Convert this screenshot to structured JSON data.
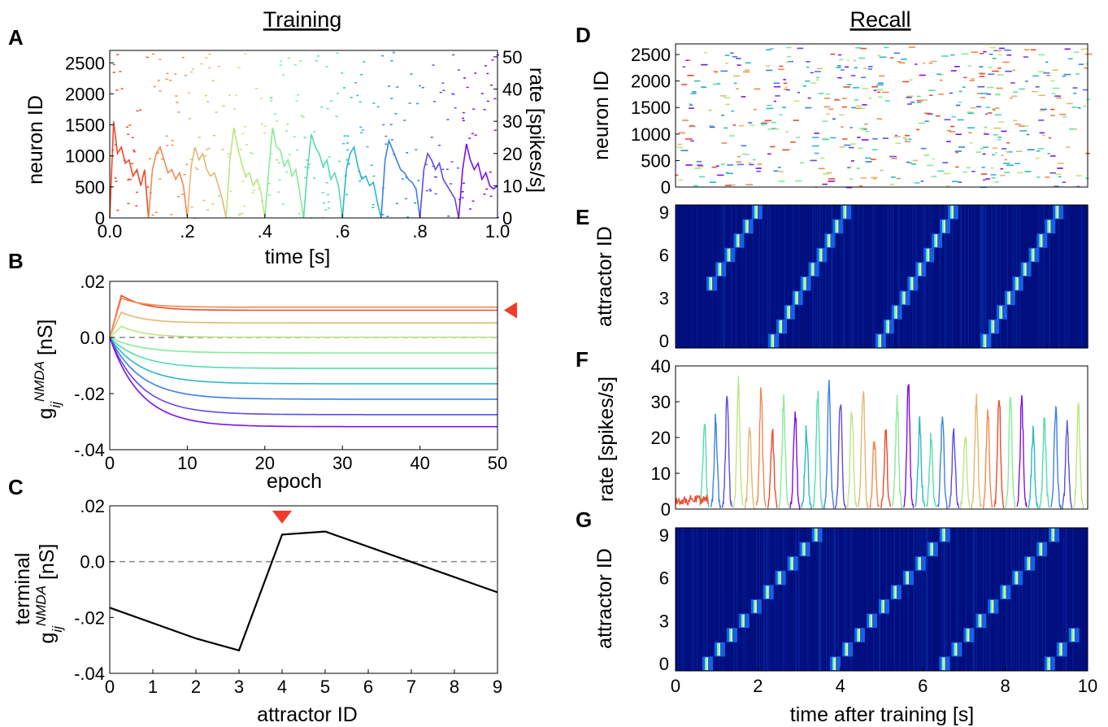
{
  "headings": {
    "training": "Training",
    "recall": "Recall"
  },
  "panel_letters": {
    "A": "A",
    "B": "B",
    "C": "C",
    "D": "D",
    "E": "E",
    "F": "F",
    "G": "G"
  },
  "colors": {
    "attractors": [
      "#ee4a2c",
      "#f2884f",
      "#e3b872",
      "#bde57f",
      "#86eb95",
      "#55dcad",
      "#2ab8c9",
      "#3a82e0",
      "#5c4ce6",
      "#7f10e9"
    ],
    "heatmap_bg": "#000e7e",
    "marker": "#f03c28"
  },
  "chart_data": [
    {
      "panel": "A",
      "type": "line",
      "title": "",
      "xlabel": "time [s]",
      "ylabel": "neuron ID",
      "ylabel_right": "rate [spikes/s]",
      "xlim": [
        0,
        1.0
      ],
      "ylim": [
        0,
        2700
      ],
      "ylim_right": [
        0,
        52
      ],
      "xticks": [
        0.0,
        0.2,
        0.4,
        0.6,
        0.8,
        1.0
      ],
      "xtick_labels": [
        "0.0",
        ".2",
        ".4",
        ".6",
        ".8",
        "1.0"
      ],
      "yticks": [
        0,
        500,
        1000,
        1500,
        2000,
        2500
      ],
      "yticks_right": [
        0,
        10,
        20,
        30,
        40,
        50
      ],
      "series": [
        {
          "x": [
            0.0,
            0.01,
            0.02,
            0.03,
            0.04,
            0.05,
            0.06,
            0.07,
            0.08,
            0.09,
            0.1
          ],
          "y": [
            0,
            30,
            20,
            22,
            17,
            18,
            13,
            15,
            10,
            15,
            0
          ]
        },
        {
          "x": [
            0.1,
            0.11,
            0.12,
            0.13,
            0.14,
            0.15,
            0.16,
            0.17,
            0.18,
            0.19,
            0.2
          ],
          "y": [
            0,
            15,
            20,
            22,
            18,
            14,
            15,
            12,
            14,
            10,
            0
          ]
        },
        {
          "x": [
            0.2,
            0.21,
            0.22,
            0.23,
            0.24,
            0.25,
            0.26,
            0.27,
            0.28,
            0.29,
            0.3
          ],
          "y": [
            0,
            16,
            22,
            18,
            20,
            15,
            13,
            14,
            10,
            6,
            0
          ]
        },
        {
          "x": [
            0.3,
            0.31,
            0.32,
            0.33,
            0.34,
            0.35,
            0.36,
            0.37,
            0.38,
            0.39,
            0.4
          ],
          "y": [
            0,
            18,
            28,
            22,
            17,
            13,
            14,
            10,
            12,
            8,
            0
          ]
        },
        {
          "x": [
            0.4,
            0.41,
            0.42,
            0.43,
            0.44,
            0.45,
            0.46,
            0.47,
            0.48,
            0.49,
            0.5
          ],
          "y": [
            0,
            15,
            28,
            22,
            21,
            16,
            18,
            13,
            15,
            8,
            0
          ]
        },
        {
          "x": [
            0.5,
            0.51,
            0.52,
            0.53,
            0.54,
            0.55,
            0.56,
            0.57,
            0.58,
            0.59,
            0.6
          ],
          "y": [
            0,
            15,
            26,
            22,
            20,
            16,
            18,
            12,
            14,
            10,
            0
          ]
        },
        {
          "x": [
            0.6,
            0.61,
            0.62,
            0.63,
            0.64,
            0.65,
            0.66,
            0.67,
            0.68,
            0.69,
            0.7
          ],
          "y": [
            0,
            15,
            20,
            22,
            16,
            12,
            13,
            10,
            11,
            5,
            0
          ]
        },
        {
          "x": [
            0.7,
            0.71,
            0.72,
            0.73,
            0.74,
            0.75,
            0.76,
            0.77,
            0.78,
            0.79,
            0.8
          ],
          "y": [
            0,
            18,
            24,
            21,
            18,
            15,
            14,
            12,
            11,
            9,
            0
          ]
        },
        {
          "x": [
            0.8,
            0.81,
            0.82,
            0.83,
            0.84,
            0.85,
            0.86,
            0.87,
            0.88,
            0.89,
            0.9
          ],
          "y": [
            0,
            15,
            20,
            18,
            15,
            17,
            12,
            10,
            8,
            6,
            0
          ]
        },
        {
          "x": [
            0.9,
            0.91,
            0.92,
            0.93,
            0.94,
            0.95,
            0.96,
            0.97,
            0.98,
            0.99,
            1.0
          ],
          "y": [
            0,
            15,
            23,
            18,
            15,
            17,
            12,
            14,
            10,
            9,
            10
          ]
        }
      ]
    },
    {
      "panel": "B",
      "type": "line",
      "title": "",
      "xlabel": "epoch",
      "ylabel": "g_ij^NMDA [nS]",
      "xlim": [
        0,
        50
      ],
      "ylim": [
        -0.04,
        0.02
      ],
      "xticks": [
        0,
        10,
        20,
        30,
        40,
        50
      ],
      "yticks": [
        -0.04,
        -0.02,
        0.0,
        0.02
      ],
      "ytick_labels": [
        "-.04",
        "-.02",
        "0.0",
        ".02"
      ],
      "reference_line": 0.0,
      "series": [
        {
          "peak": 0.015,
          "final": 0.0097
        },
        {
          "peak": 0.014,
          "final": 0.0108
        },
        {
          "peak": 0.009,
          "final": 0.0052
        },
        {
          "peak": 0.004,
          "final": 0.0001
        },
        {
          "peak": 0.0,
          "final": -0.0055
        },
        {
          "peak": 0.0,
          "final": -0.011
        },
        {
          "peak": 0.0,
          "final": -0.0165
        },
        {
          "peak": 0.0,
          "final": -0.022
        },
        {
          "peak": 0.0,
          "final": -0.0275
        },
        {
          "peak": 0.0,
          "final": -0.0318
        }
      ]
    },
    {
      "panel": "C",
      "type": "line",
      "title": "",
      "xlabel": "attractor ID",
      "ylabel_line1": "terminal",
      "ylabel": "g_ij^NMDA [nS]",
      "xlim": [
        0,
        9
      ],
      "ylim": [
        -0.04,
        0.02
      ],
      "xticks": [
        0,
        1,
        2,
        3,
        4,
        5,
        6,
        7,
        8,
        9
      ],
      "yticks": [
        -0.04,
        -0.02,
        0.0,
        0.02
      ],
      "ytick_labels": [
        "-.04",
        "-.02",
        "0.0",
        ".02"
      ],
      "reference_line": 0.0,
      "x": [
        0,
        2,
        3,
        4,
        5,
        9
      ],
      "values": [
        -0.0165,
        -0.0275,
        -0.0318,
        0.0097,
        0.0108,
        -0.011
      ],
      "marker_x": 4
    },
    {
      "panel": "D",
      "type": "scatter",
      "title": "",
      "xlabel": "",
      "ylabel": "neuron ID",
      "xlim": [
        0,
        10
      ],
      "ylim": [
        0,
        2700
      ],
      "yticks": [
        0,
        500,
        1000,
        1500,
        2000,
        2500
      ]
    },
    {
      "panel": "E",
      "type": "heatmap",
      "title": "",
      "xlabel": "",
      "ylabel": "attractor ID",
      "xlim": [
        0,
        10
      ],
      "ylim": [
        0,
        9
      ],
      "yticks": [
        0,
        3,
        6,
        9
      ],
      "sequence_starts": [
        2.25,
        4.85,
        7.4
      ],
      "pre_sequence": {
        "start": 0.75,
        "from_attractor": 4
      },
      "step_s": 0.09
    },
    {
      "panel": "F",
      "type": "line",
      "title": "",
      "xlabel": "",
      "ylabel": "rate [spikes/s]",
      "xlim": [
        0,
        10
      ],
      "ylim": [
        0,
        40
      ],
      "yticks": [
        0,
        10,
        20,
        30,
        40
      ]
    },
    {
      "panel": "G",
      "type": "heatmap",
      "title": "",
      "xlabel": "time after training [s]",
      "ylabel": "attractor ID",
      "xlim": [
        0,
        10
      ],
      "ylim": [
        0,
        9
      ],
      "xticks": [
        0,
        2,
        4,
        6,
        8,
        10
      ],
      "yticks": [
        0,
        3,
        6,
        9
      ],
      "sequence_starts": [
        0.65,
        3.75,
        6.4,
        8.95
      ],
      "step_s": -0.32
    }
  ]
}
